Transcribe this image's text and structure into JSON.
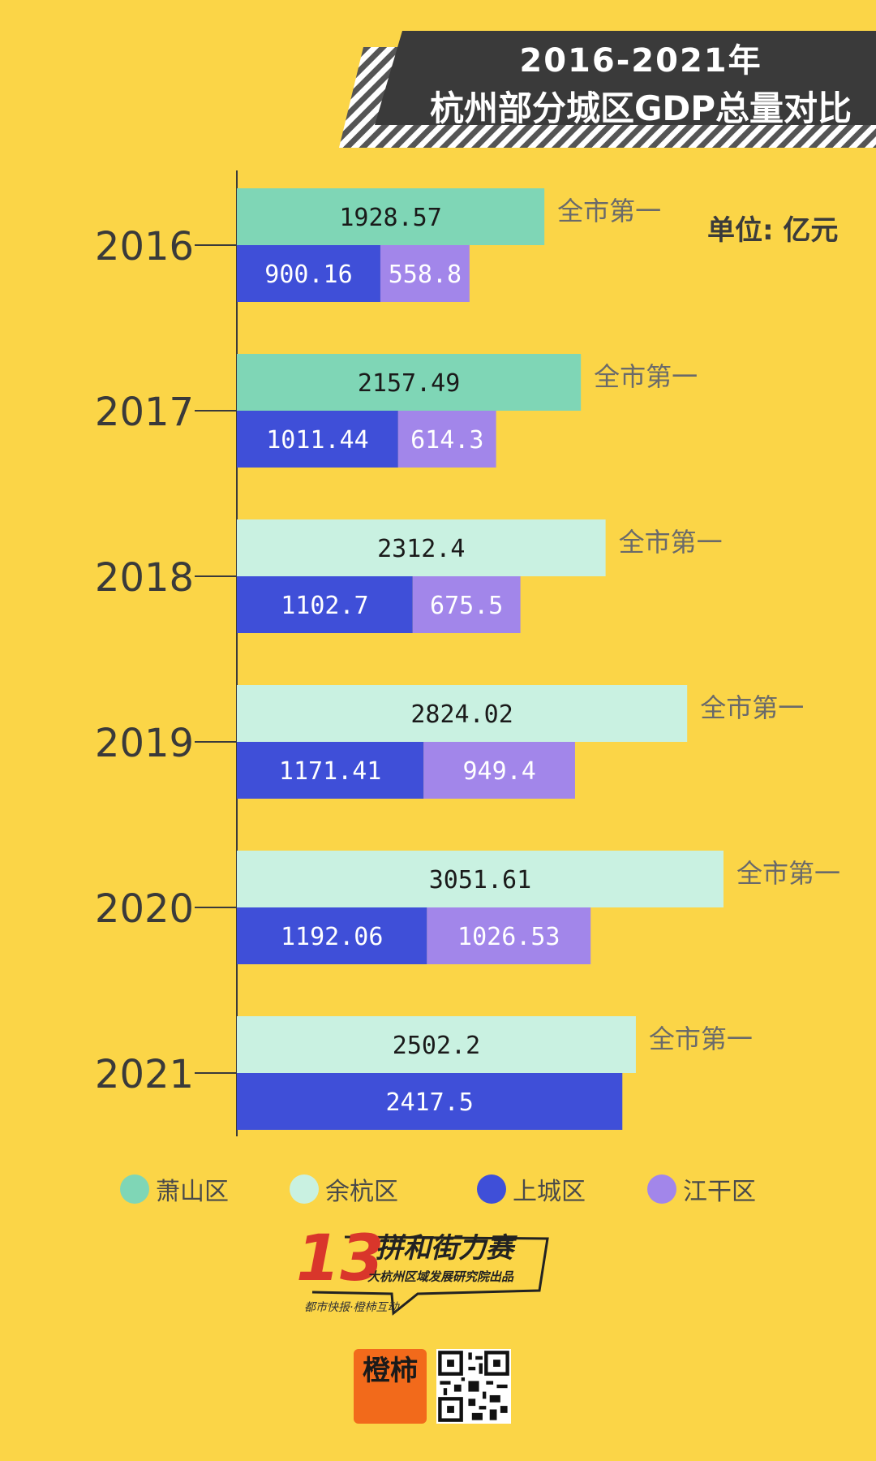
{
  "title": {
    "line1": "2016-2021年",
    "line2": "杭州部分城区GDP总量对比"
  },
  "unit_label": "单位: 亿元",
  "legend": [
    {
      "label": "萧山区",
      "color": "#7FD6B6"
    },
    {
      "label": "余杭区",
      "color": "#C9F1E1"
    },
    {
      "label": "上城区",
      "color": "#3F4FD8"
    },
    {
      "label": "江干区",
      "color": "#A286EA"
    }
  ],
  "chart_data": {
    "type": "bar",
    "orientation": "horizontal",
    "categories": [
      "2016",
      "2017",
      "2018",
      "2019",
      "2020",
      "2021"
    ],
    "top_series_per_year": [
      "萧山区",
      "萧山区",
      "余杭区",
      "余杭区",
      "余杭区",
      "余杭区"
    ],
    "top_values": [
      1928.57,
      2157.49,
      2312.4,
      2824.02,
      3051.61,
      2502.2
    ],
    "top_labels": [
      "1928.57",
      "2157.49",
      "2312.4",
      "2824.02",
      "3051.61",
      "2502.2"
    ],
    "top_annotation": "全市第一",
    "series": [
      {
        "name": "上城区",
        "values": [
          900.16,
          1011.44,
          1102.7,
          1171.41,
          1192.06,
          2417.5
        ],
        "labels": [
          "900.16",
          "1011.44",
          "1102.7",
          "1171.41",
          "1192.06",
          "2417.5"
        ]
      },
      {
        "name": "江干区",
        "values": [
          558.8,
          614.3,
          675.5,
          949.4,
          1026.53,
          null
        ],
        "labels": [
          "558.8",
          "614.3",
          "675.5",
          "949.4",
          "1026.53",
          ""
        ]
      }
    ],
    "bottom_stacked": true,
    "xlim": [
      0,
      3500
    ],
    "colors": {
      "萧山区": "#7FD6B6",
      "余杭区": "#C9F1E1",
      "上城区": "#3F4FD8",
      "江干区": "#A286EA",
      "axis": "#3a3a3a",
      "annotation": "#6a6a6a",
      "year_label": "#3a3a3a"
    }
  },
  "branding": {
    "number": "13",
    "name": "拼和街力赛",
    "subtitle": "大杭州区域发展研究院出品",
    "byline": "都市快报·橙柿互动",
    "logo_text": "橙柿"
  }
}
